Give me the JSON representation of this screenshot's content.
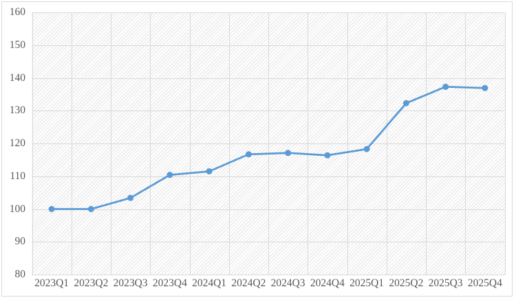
{
  "chart_data": {
    "type": "line",
    "title": "",
    "xlabel": "",
    "ylabel": "",
    "categories": [
      "2023Q1",
      "2023Q2",
      "2023Q3",
      "2023Q4",
      "2024Q1",
      "2024Q2",
      "2024Q3",
      "2024Q4",
      "2025Q1",
      "2025Q2",
      "2025Q3",
      "2025Q4"
    ],
    "values": [
      100.0,
      100.0,
      103.4,
      110.4,
      111.5,
      116.7,
      117.1,
      116.4,
      118.3,
      132.3,
      137.3,
      136.9
    ],
    "series": [
      {
        "name": "index-series",
        "color": "#5B9BD5"
      }
    ],
    "ylim": [
      80,
      160
    ],
    "y_tick_labels": [
      "160",
      "150",
      "140",
      "130",
      "120",
      "110",
      "100",
      "90",
      "80"
    ],
    "grid": true,
    "legend_position": "none",
    "marker": "circle",
    "plot_background": "diagonal-hatch"
  },
  "colors": {
    "series": "#5B9BD5",
    "gridline": "#D9D9D9",
    "axis_label": "#595959",
    "chart_border": "#D9D9D9",
    "plot_hatch": "#E9E9E9",
    "background": "#FFFFFF"
  }
}
